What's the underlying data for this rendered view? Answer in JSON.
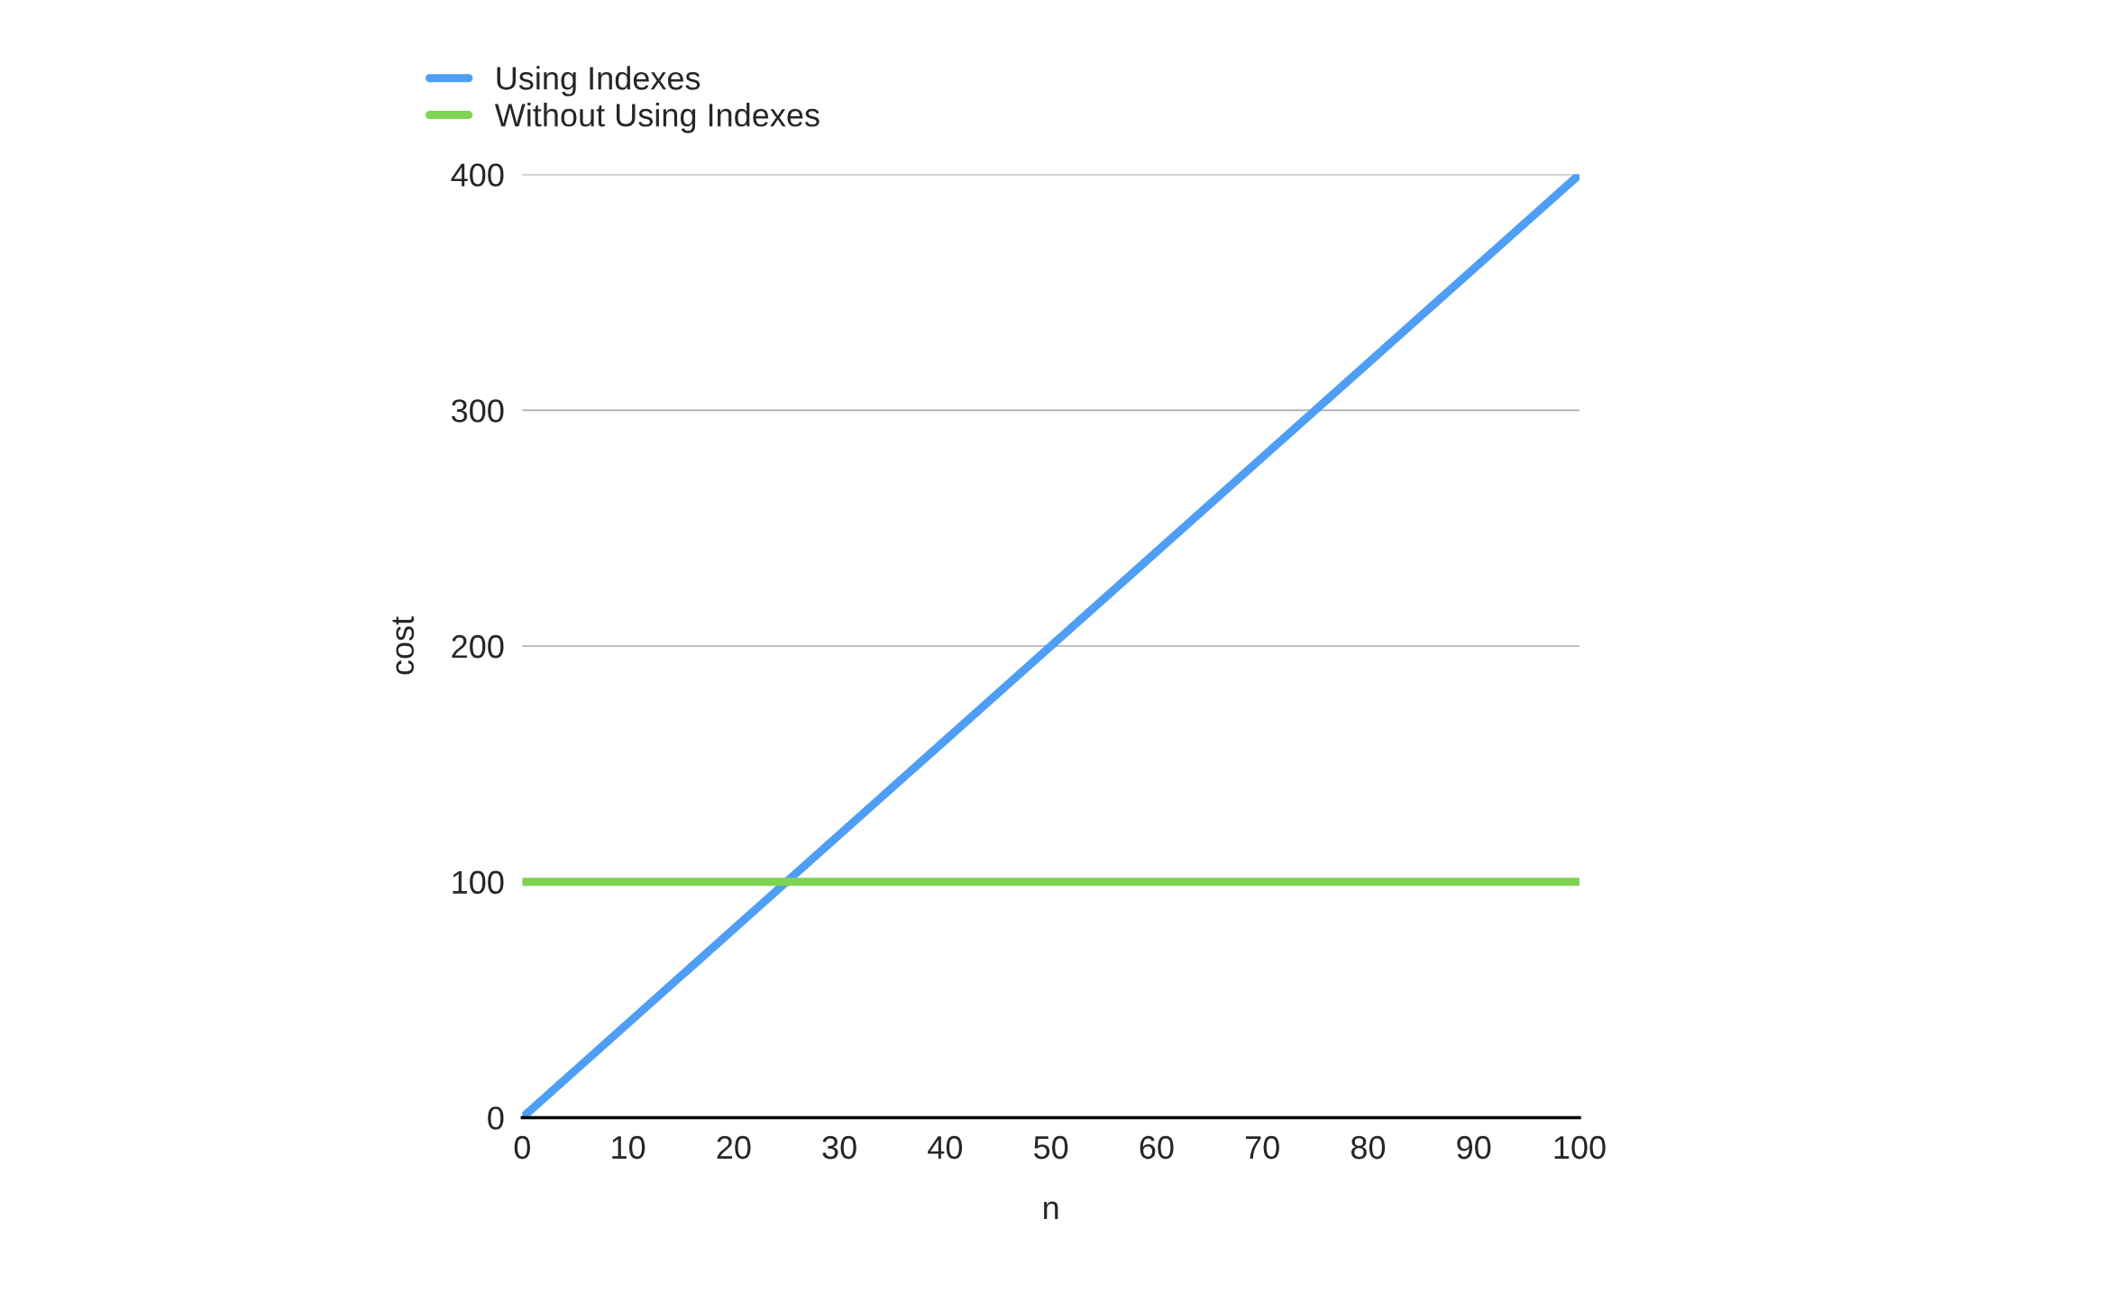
{
  "chart_data": {
    "type": "line",
    "xlabel": "n",
    "ylabel": "cost",
    "x": [
      0,
      100
    ],
    "series": [
      {
        "name": "Using Indexes",
        "color": "#4f9ef5",
        "values": [
          0,
          400
        ]
      },
      {
        "name": "Without Using Indexes",
        "color": "#7ed350",
        "values": [
          100,
          100
        ]
      }
    ],
    "xlim": [
      0,
      100
    ],
    "xticks": [
      0,
      10,
      20,
      30,
      40,
      50,
      60,
      70,
      80,
      90,
      100
    ],
    "ylim": [
      0,
      400
    ],
    "yticks": [
      0,
      100,
      200,
      300,
      400
    ],
    "grid": "y",
    "legend": "top left",
    "marker": "none",
    "line_style": "solid"
  }
}
